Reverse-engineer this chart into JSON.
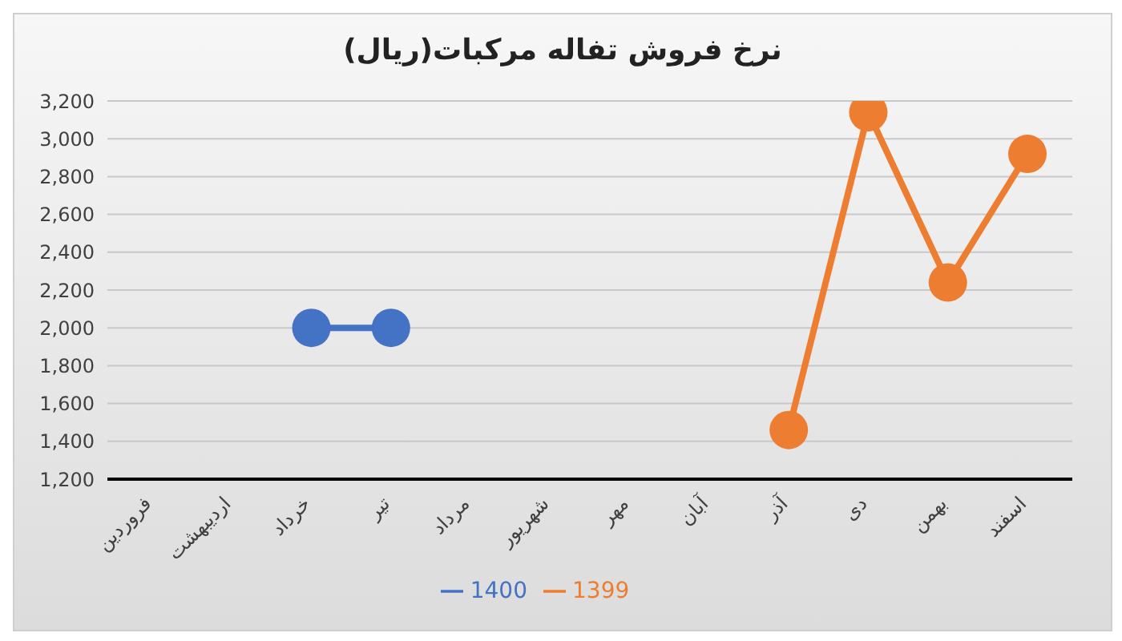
{
  "chart_data": {
    "type": "line",
    "title": "نرخ فروش تفاله مرکبات(ریال)",
    "categories": [
      "فروردین",
      "اردیبهشت",
      "خرداد",
      "تیر",
      "مرداد",
      "شهریور",
      "مهر",
      "آبان",
      "آذر",
      "دی",
      "بهمن",
      "اسفند"
    ],
    "series": [
      {
        "name": "1400",
        "color": "#4472c4",
        "values": [
          null,
          null,
          2000,
          2000,
          null,
          null,
          null,
          null,
          null,
          null,
          null,
          null
        ]
      },
      {
        "name": "1399",
        "color": "#ed7d31",
        "values": [
          null,
          null,
          null,
          null,
          null,
          null,
          null,
          null,
          1460,
          3140,
          2240,
          2920
        ]
      }
    ],
    "ylim": [
      1200,
      3200
    ],
    "yticks": [
      {
        "value": 1200,
        "label": "1,200"
      },
      {
        "value": 1400,
        "label": "1,400"
      },
      {
        "value": 1600,
        "label": "1,600"
      },
      {
        "value": 1800,
        "label": "1,800"
      },
      {
        "value": 2000,
        "label": "2,000"
      },
      {
        "value": 2200,
        "label": "2,200"
      },
      {
        "value": 2400,
        "label": "2,400"
      },
      {
        "value": 2600,
        "label": "2,600"
      },
      {
        "value": 2800,
        "label": "2,800"
      },
      {
        "value": 3000,
        "label": "3,000"
      },
      {
        "value": 3200,
        "label": "3,200"
      }
    ],
    "grid": "y",
    "legend": "bottom",
    "marker": "circle",
    "line_style": "solid"
  }
}
